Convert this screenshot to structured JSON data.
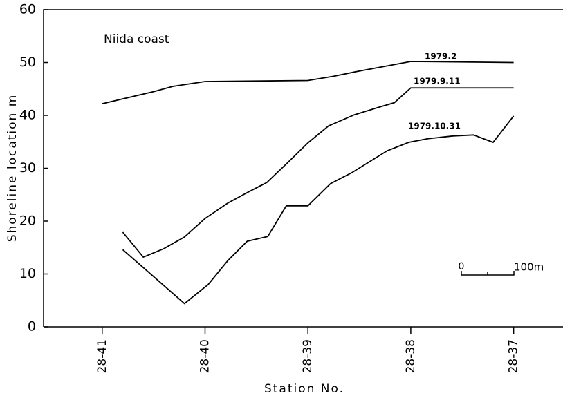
{
  "chart_data": {
    "type": "line",
    "annotation": "Niida coast",
    "xlabel": "Station No.",
    "ylabel": "Shoreline location   m",
    "scale_bar": {
      "start_label": "0",
      "end_label": "100m"
    },
    "xlim": [
      -0.57,
      4.48
    ],
    "xticks": [
      {
        "value": 0,
        "label": "28-41"
      },
      {
        "value": 1,
        "label": "28-40"
      },
      {
        "value": 2,
        "label": "28-39"
      },
      {
        "value": 3,
        "label": "28-38"
      },
      {
        "value": 4,
        "label": "28-37"
      }
    ],
    "ylim": [
      0,
      60
    ],
    "yticks": [
      0,
      10,
      20,
      30,
      40,
      50,
      60
    ],
    "series": [
      {
        "name": "1979.2",
        "color": "#000000",
        "x": [
          0,
          0.5,
          0.69,
          1.0,
          2.0,
          2.25,
          2.45,
          3.0,
          4.0
        ],
        "values": [
          42.2,
          44.5,
          45.5,
          46.4,
          46.6,
          47.4,
          48.2,
          50.2,
          50.0
        ]
      },
      {
        "name": "1979.9.11",
        "color": "#000000",
        "x": [
          0.2,
          0.4,
          0.6,
          0.8,
          1.0,
          1.22,
          1.42,
          1.6,
          1.8,
          2.0,
          2.2,
          2.45,
          2.7,
          2.84,
          3.0,
          4.0
        ],
        "values": [
          17.9,
          13.2,
          14.8,
          17.0,
          20.5,
          23.4,
          25.5,
          27.3,
          31.0,
          34.8,
          38.0,
          40.1,
          41.6,
          42.4,
          45.2,
          45.2
        ]
      },
      {
        "name": "1979.10.31",
        "color": "#000000",
        "x": [
          0.2,
          0.8,
          1.03,
          1.22,
          1.41,
          1.61,
          1.79,
          2.0,
          2.22,
          2.43,
          2.77,
          2.98,
          3.17,
          3.41,
          3.61,
          3.8,
          4.0
        ],
        "values": [
          14.6,
          4.4,
          8.0,
          12.5,
          16.2,
          17.1,
          22.9,
          22.9,
          27.1,
          29.2,
          33.3,
          34.9,
          35.6,
          36.1,
          36.3,
          34.9,
          39.9
        ]
      }
    ]
  }
}
